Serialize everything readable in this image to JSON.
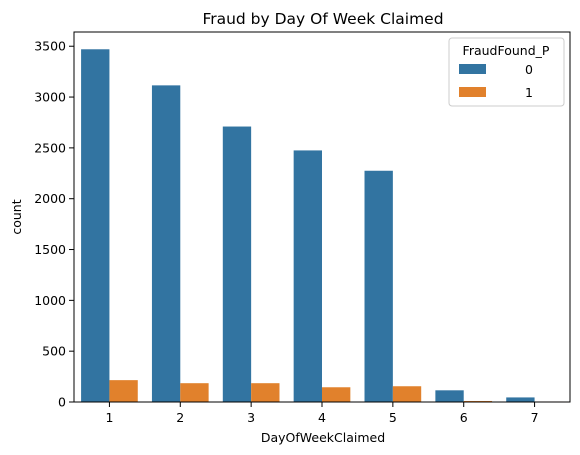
{
  "chart_data": {
    "type": "bar",
    "title": "Fraud by Day Of Week Claimed",
    "xlabel": "DayOfWeekClaimed",
    "ylabel": "count",
    "categories": [
      "1",
      "2",
      "3",
      "4",
      "5",
      "6",
      "7"
    ],
    "ylim": [
      0,
      3640
    ],
    "yticks": [
      "0",
      "500",
      "1000",
      "1500",
      "2000",
      "2500",
      "3000",
      "3500"
    ],
    "grid": false,
    "legend": {
      "title": "FraudFound_P",
      "placement": "top-right"
    },
    "series": [
      {
        "name": "0",
        "color": "#3274a1",
        "values": [
          3470,
          3115,
          2710,
          2475,
          2275,
          115,
          45
        ]
      },
      {
        "name": "1",
        "color": "#e1812c",
        "values": [
          215,
          185,
          185,
          145,
          155,
          10,
          5
        ]
      }
    ]
  }
}
